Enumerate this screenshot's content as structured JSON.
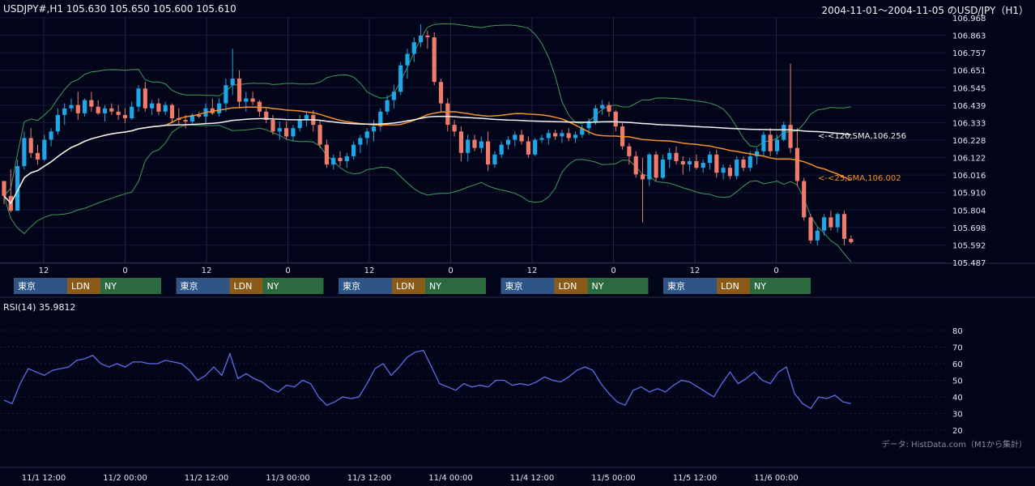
{
  "header": {
    "symbol_line": "USDJPY#,H1 105.630 105.650 105.600 105.610",
    "range_line": "2004-11-01～2004-11-05 のUSD/JPY（H1）"
  },
  "rsi_panel": {
    "title": "RSI(14) 35.9812"
  },
  "footer": {
    "credit": "データ: HistData.com（M1から集計）"
  },
  "colors": {
    "background": "#02041a",
    "bull": "#1ea6e6",
    "bear": "#ef7b6b",
    "sma25": "#f2922b",
    "sma120": "#f2f2f2",
    "bollinger": "#3f9a5a",
    "rsi": "#5d6fe3",
    "tokyo": "#2e5586",
    "london": "#8a5a18",
    "newyork": "#2a6a3e"
  },
  "chart_data": [
    {
      "type": "candlestick",
      "name": "price",
      "ylim": [
        105.487,
        106.968
      ],
      "y_ticks": [
        "106.968",
        "106.863",
        "106.757",
        "106.651",
        "106.545",
        "106.439",
        "106.333",
        "106.228",
        "106.122",
        "106.016",
        "105.910",
        "105.804",
        "105.698",
        "105.592",
        "105.487"
      ],
      "x_ticks": [
        "12",
        "0",
        "12",
        "0",
        "12",
        "0",
        "12",
        "0",
        "12",
        "0"
      ],
      "annotations": [
        {
          "label": "<-<120,SMA,106.256",
          "value": 106.256,
          "color": "#f2f2f2"
        },
        {
          "label": "<-<25,SMA,106.002",
          "value": 106.002,
          "color": "#f2922b"
        }
      ],
      "session_bars": [
        [
          "東京",
          "LDN",
          "NY"
        ],
        [
          "東京",
          "LDN",
          "NY"
        ],
        [
          "東京",
          "LDN",
          "NY"
        ],
        [
          "東京",
          "LDN",
          "NY"
        ],
        [
          "東京",
          "LDN",
          "NY"
        ]
      ],
      "ohlc": [
        [
          105.98,
          105.98,
          105.84,
          105.89
        ],
        [
          105.89,
          106.05,
          105.79,
          105.8
        ],
        [
          105.8,
          106.11,
          105.8,
          106.07
        ],
        [
          106.07,
          106.28,
          106.05,
          106.24
        ],
        [
          106.24,
          106.3,
          106.12,
          106.15
        ],
        [
          106.15,
          106.2,
          106.08,
          106.11
        ],
        [
          106.11,
          106.26,
          106.1,
          106.23
        ],
        [
          106.23,
          106.3,
          106.19,
          106.28
        ],
        [
          106.28,
          106.42,
          106.26,
          106.38
        ],
        [
          106.38,
          106.45,
          106.32,
          106.42
        ],
        [
          106.42,
          106.48,
          106.4,
          106.44
        ],
        [
          106.44,
          106.52,
          106.35,
          106.39
        ],
        [
          106.39,
          106.48,
          106.37,
          106.47
        ],
        [
          106.47,
          106.52,
          106.4,
          106.43
        ],
        [
          106.43,
          106.47,
          106.38,
          106.39
        ],
        [
          106.39,
          106.44,
          106.34,
          106.42
        ],
        [
          106.42,
          106.45,
          106.38,
          106.4
        ],
        [
          106.4,
          106.44,
          106.35,
          106.38
        ],
        [
          106.38,
          106.42,
          106.33,
          106.36
        ],
        [
          106.36,
          106.46,
          106.35,
          106.43
        ],
        [
          106.43,
          106.56,
          106.4,
          106.54
        ],
        [
          106.54,
          106.58,
          106.4,
          106.42
        ],
        [
          106.42,
          106.47,
          106.38,
          106.45
        ],
        [
          106.45,
          106.48,
          106.38,
          106.4
        ],
        [
          106.4,
          106.46,
          106.38,
          106.44
        ],
        [
          106.44,
          106.45,
          106.33,
          106.36
        ],
        [
          106.36,
          106.42,
          106.32,
          106.35
        ],
        [
          106.35,
          106.38,
          106.3,
          106.34
        ],
        [
          106.34,
          106.39,
          106.32,
          106.38
        ],
        [
          106.38,
          106.4,
          106.36,
          106.37
        ],
        [
          106.37,
          106.45,
          106.33,
          106.42
        ],
        [
          106.42,
          106.48,
          106.38,
          106.39
        ],
        [
          106.39,
          106.48,
          106.37,
          106.45
        ],
        [
          106.45,
          106.6,
          106.4,
          106.56
        ],
        [
          106.56,
          106.78,
          106.5,
          106.6
        ],
        [
          106.6,
          106.65,
          106.42,
          106.46
        ],
        [
          106.46,
          106.52,
          106.4,
          106.48
        ],
        [
          106.48,
          106.52,
          106.44,
          106.46
        ],
        [
          106.46,
          106.47,
          106.37,
          106.4
        ],
        [
          106.4,
          106.42,
          106.33,
          106.35
        ],
        [
          106.35,
          106.38,
          106.26,
          106.28
        ],
        [
          106.28,
          106.34,
          106.23,
          106.3
        ],
        [
          106.3,
          106.34,
          106.23,
          106.25
        ],
        [
          106.25,
          106.32,
          106.22,
          106.3
        ],
        [
          106.3,
          106.38,
          106.28,
          106.35
        ],
        [
          106.35,
          106.4,
          106.31,
          106.38
        ],
        [
          106.38,
          106.41,
          106.28,
          106.32
        ],
        [
          106.32,
          106.35,
          106.18,
          106.2
        ],
        [
          106.2,
          106.23,
          106.06,
          106.08
        ],
        [
          106.08,
          106.14,
          106.05,
          106.12
        ],
        [
          106.12,
          106.16,
          106.07,
          106.1
        ],
        [
          106.1,
          106.15,
          106.06,
          106.13
        ],
        [
          106.13,
          106.22,
          106.11,
          106.2
        ],
        [
          106.2,
          106.26,
          106.15,
          106.24
        ],
        [
          106.24,
          106.3,
          106.2,
          106.28
        ],
        [
          106.28,
          106.35,
          106.22,
          106.31
        ],
        [
          106.31,
          106.42,
          106.28,
          106.4
        ],
        [
          106.4,
          106.5,
          106.38,
          106.47
        ],
        [
          106.47,
          106.56,
          106.42,
          106.52
        ],
        [
          106.52,
          106.7,
          106.5,
          106.68
        ],
        [
          106.68,
          106.78,
          106.6,
          106.75
        ],
        [
          106.75,
          106.85,
          106.7,
          106.82
        ],
        [
          106.82,
          106.93,
          106.79,
          106.86
        ],
        [
          106.86,
          106.89,
          106.78,
          106.85
        ],
        [
          106.85,
          106.88,
          106.56,
          106.58
        ],
        [
          106.58,
          106.6,
          106.4,
          106.45
        ],
        [
          106.45,
          106.48,
          106.28,
          106.32
        ],
        [
          106.32,
          106.35,
          106.25,
          106.28
        ],
        [
          106.28,
          106.31,
          106.1,
          106.15
        ],
        [
          106.15,
          106.26,
          106.1,
          106.23
        ],
        [
          106.23,
          106.26,
          106.16,
          106.18
        ],
        [
          106.18,
          106.25,
          106.15,
          106.22
        ],
        [
          106.22,
          106.28,
          106.04,
          106.08
        ],
        [
          106.08,
          106.16,
          106.06,
          106.14
        ],
        [
          106.14,
          106.22,
          106.12,
          106.2
        ],
        [
          106.2,
          106.25,
          106.17,
          106.23
        ],
        [
          106.23,
          106.28,
          106.19,
          106.26
        ],
        [
          106.26,
          106.29,
          106.2,
          106.22
        ],
        [
          106.22,
          106.25,
          106.12,
          106.14
        ],
        [
          106.14,
          106.24,
          106.13,
          106.23
        ],
        [
          106.23,
          106.26,
          106.21,
          106.24
        ],
        [
          106.24,
          106.29,
          106.2,
          106.27
        ],
        [
          106.27,
          106.29,
          106.23,
          106.25
        ],
        [
          106.25,
          106.29,
          106.21,
          106.27
        ],
        [
          106.27,
          106.3,
          106.22,
          106.24
        ],
        [
          106.24,
          106.28,
          106.21,
          106.26
        ],
        [
          106.26,
          106.32,
          106.24,
          106.3
        ],
        [
          106.3,
          106.36,
          106.26,
          106.34
        ],
        [
          106.34,
          106.44,
          106.32,
          106.42
        ],
        [
          106.42,
          106.47,
          106.38,
          106.44
        ],
        [
          106.44,
          106.46,
          106.37,
          106.4
        ],
        [
          106.4,
          106.41,
          106.28,
          106.31
        ],
        [
          106.31,
          106.33,
          106.17,
          106.19
        ],
        [
          106.19,
          106.21,
          106.08,
          106.13
        ],
        [
          106.13,
          106.16,
          106.0,
          106.02
        ],
        [
          106.02,
          106.12,
          105.73,
          105.99
        ],
        [
          105.99,
          106.15,
          105.95,
          106.14
        ],
        [
          106.14,
          106.16,
          105.98,
          106.0
        ],
        [
          106.0,
          106.14,
          105.99,
          106.11
        ],
        [
          106.11,
          106.18,
          106.06,
          106.15
        ],
        [
          106.15,
          106.19,
          106.08,
          106.1
        ],
        [
          106.1,
          106.13,
          106.02,
          106.08
        ],
        [
          106.08,
          106.12,
          106.04,
          106.1
        ],
        [
          106.1,
          106.14,
          106.05,
          106.06
        ],
        [
          106.06,
          106.11,
          106.03,
          106.09
        ],
        [
          106.09,
          106.16,
          106.05,
          106.14
        ],
        [
          106.14,
          106.17,
          106.0,
          106.03
        ],
        [
          106.03,
          106.08,
          105.99,
          106.06
        ],
        [
          106.06,
          106.08,
          105.99,
          106.01
        ],
        [
          106.01,
          106.13,
          105.99,
          106.11
        ],
        [
          106.11,
          106.13,
          106.04,
          106.06
        ],
        [
          106.06,
          106.16,
          106.04,
          106.13
        ],
        [
          106.13,
          106.18,
          106.08,
          106.16
        ],
        [
          106.16,
          106.28,
          106.13,
          106.26
        ],
        [
          106.26,
          106.3,
          106.13,
          106.16
        ],
        [
          106.16,
          106.26,
          106.14,
          106.23
        ],
        [
          106.23,
          106.34,
          106.22,
          106.32
        ],
        [
          106.32,
          106.69,
          106.15,
          106.18
        ],
        [
          106.18,
          106.3,
          105.95,
          105.98
        ],
        [
          105.98,
          106.0,
          105.74,
          105.76
        ],
        [
          105.76,
          105.78,
          105.6,
          105.62
        ],
        [
          105.62,
          105.7,
          105.59,
          105.68
        ],
        [
          105.68,
          105.78,
          105.65,
          105.76
        ],
        [
          105.76,
          105.8,
          105.68,
          105.7
        ],
        [
          105.7,
          105.79,
          105.67,
          105.78
        ],
        [
          105.78,
          105.8,
          105.59,
          105.63
        ],
        [
          105.63,
          105.65,
          105.6,
          105.61
        ]
      ]
    },
    {
      "type": "line",
      "name": "rsi",
      "ylim": [
        20,
        80
      ],
      "y_ticks": [
        "80",
        "70",
        "60",
        "50",
        "40",
        "30",
        "20"
      ],
      "x_ticks": [
        "11/1 12:00",
        "11/2 00:00",
        "11/2 12:00",
        "11/3 00:00",
        "11/3 12:00",
        "11/4 00:00",
        "11/4 12:00",
        "11/5 00:00",
        "11/5 12:00",
        "11/6 00:00"
      ],
      "values": [
        38,
        36,
        48,
        57,
        55,
        53,
        56,
        57,
        58,
        62,
        63,
        65,
        60,
        58,
        60,
        58,
        61,
        61,
        60,
        60,
        62,
        61,
        60,
        56,
        50,
        53,
        58,
        53,
        66,
        51,
        54,
        51,
        49,
        45,
        43,
        47,
        46,
        50,
        48,
        40,
        35,
        37,
        40,
        39,
        40,
        48,
        57,
        60,
        53,
        58,
        64,
        67,
        68,
        58,
        48,
        46,
        44,
        48,
        46,
        47,
        46,
        50,
        50,
        47,
        48,
        47,
        49,
        52,
        50,
        49,
        52,
        56,
        58,
        56,
        48,
        42,
        37,
        35,
        44,
        46,
        43,
        45,
        43,
        47,
        50,
        49,
        46,
        43,
        40,
        48,
        55,
        48,
        51,
        55,
        50,
        48,
        55,
        58,
        42,
        36,
        33,
        40,
        39,
        41,
        37,
        36
      ]
    }
  ]
}
